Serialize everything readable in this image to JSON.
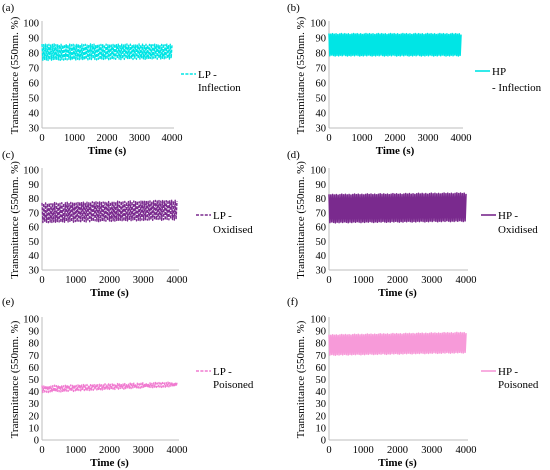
{
  "panels": [
    {
      "label": "(a)",
      "chart_data": {
        "type": "line",
        "series": [
          {
            "name": "LP - Inflection",
            "color": "#00e5e5",
            "style": "dashed",
            "oscillation": {
              "low": 75,
              "high": 86,
              "drift_to": {
                "low": 76,
                "high": 86
              }
            }
          }
        ],
        "xlabel": "Time (s)",
        "ylabel": "Transmittance (550nm. %)",
        "xlim": [
          0,
          4000
        ],
        "ylim": [
          30,
          100
        ],
        "xticks": [
          0,
          1000,
          2000,
          3000,
          4000
        ],
        "yticks": [
          30,
          40,
          50,
          60,
          70,
          80,
          90,
          100
        ],
        "legend": [
          "LP -",
          "Inflection"
        ],
        "legend_position": "right"
      }
    },
    {
      "label": "(b)",
      "chart_data": {
        "type": "line",
        "series": [
          {
            "name": "HP - Inflection",
            "color": "#00e5e5",
            "style": "solid",
            "oscillation": {
              "low": 78,
              "high": 93,
              "drift_to": {
                "low": 78,
                "high": 93
              }
            }
          }
        ],
        "xlabel": "Time (s)",
        "ylabel": "Transmittance (550nm. %)",
        "xlim": [
          0,
          4000
        ],
        "ylim": [
          30,
          100
        ],
        "xticks": [
          0,
          1000,
          2000,
          3000,
          4000
        ],
        "yticks": [
          30,
          40,
          50,
          60,
          70,
          80,
          90,
          100
        ],
        "legend": [
          "HP",
          "- Inflection"
        ],
        "legend_position": "right"
      }
    },
    {
      "label": "(c)",
      "chart_data": {
        "type": "line",
        "series": [
          {
            "name": "LP - Oxidised",
            "color": "#7a2a8e",
            "style": "dashed",
            "oscillation": {
              "low": 63,
              "high": 77,
              "drift_to": {
                "low": 65,
                "high": 79
              }
            }
          }
        ],
        "xlabel": "Time (s)",
        "ylabel": "Transmittance (550nm. %)",
        "xlim": [
          0,
          4000
        ],
        "ylim": [
          30,
          100
        ],
        "xticks": [
          0,
          1000,
          2000,
          3000,
          4000
        ],
        "yticks": [
          30,
          40,
          50,
          60,
          70,
          80,
          90,
          100
        ],
        "legend": [
          "LP -",
          "Oxidised"
        ],
        "legend_position": "right"
      }
    },
    {
      "label": "(d)",
      "chart_data": {
        "type": "line",
        "series": [
          {
            "name": "HP - Oxidised",
            "color": "#7a2a8e",
            "style": "solid",
            "oscillation": {
              "low": 63,
              "high": 83,
              "drift_to": {
                "low": 64,
                "high": 84
              }
            }
          }
        ],
        "xlabel": "Time (s)",
        "ylabel": "Transmittance (550nm. %)",
        "xlim": [
          0,
          4000
        ],
        "ylim": [
          30,
          100
        ],
        "xticks": [
          0,
          1000,
          2000,
          3000,
          4000
        ],
        "yticks": [
          30,
          40,
          50,
          60,
          70,
          80,
          90,
          100
        ],
        "legend": [
          "HP -",
          "Oxidised"
        ],
        "legend_position": "right"
      }
    },
    {
      "label": "(e)",
      "chart_data": {
        "type": "line",
        "series": [
          {
            "name": "LP - Poisoned",
            "color": "#f07ad0",
            "style": "dashed",
            "oscillation": {
              "low": 39,
              "high": 45,
              "drift_to": {
                "low": 44,
                "high": 48
              }
            }
          }
        ],
        "xlabel": "Time (s)",
        "ylabel": "Transmittance (550nm. %)",
        "xlim": [
          0,
          4000
        ],
        "ylim": [
          0,
          100
        ],
        "xticks": [
          0,
          1000,
          2000,
          3000,
          4000
        ],
        "yticks": [
          0,
          10,
          20,
          30,
          40,
          50,
          60,
          70,
          80,
          90,
          100
        ],
        "legend": [
          "LP -",
          "Poisoned"
        ],
        "legend_position": "right"
      }
    },
    {
      "label": "(f)",
      "chart_data": {
        "type": "line",
        "series": [
          {
            "name": "HP - Poisoned",
            "color": "#f79ad9",
            "style": "solid",
            "oscillation": {
              "low": 70,
              "high": 87,
              "drift_to": {
                "low": 72,
                "high": 89
              }
            }
          }
        ],
        "xlabel": "Time (s)",
        "ylabel": "Transmittance (550nm. %)",
        "xlim": [
          0,
          4000
        ],
        "ylim": [
          0,
          100
        ],
        "xticks": [
          0,
          1000,
          2000,
          3000,
          4000
        ],
        "yticks": [
          0,
          10,
          20,
          30,
          40,
          50,
          60,
          70,
          80,
          90,
          100
        ],
        "legend": [
          "HP -",
          "Poisoned"
        ],
        "legend_position": "right"
      }
    }
  ]
}
